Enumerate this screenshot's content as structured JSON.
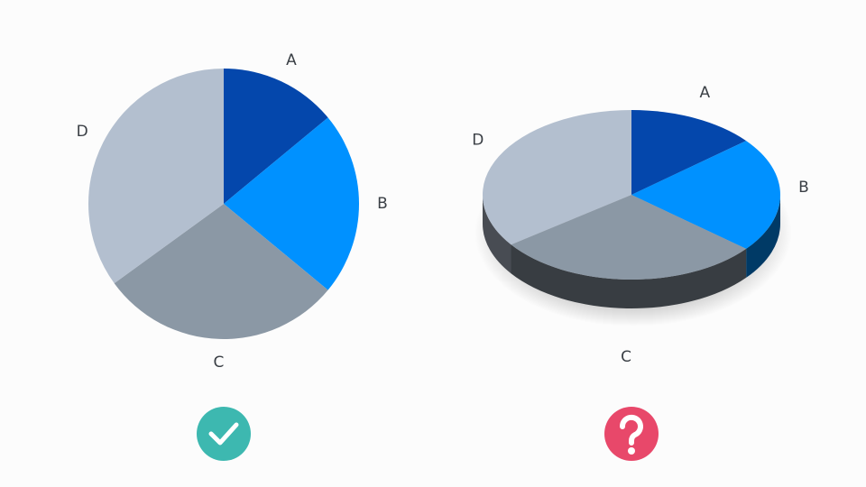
{
  "chart_data": [
    {
      "type": "pie",
      "categories": [
        "A",
        "B",
        "C",
        "D"
      ],
      "values": [
        14,
        22,
        29,
        35
      ],
      "colors": [
        "#0447ac",
        "#0091ff",
        "#8b98a5",
        "#b3bfcf"
      ]
    },
    {
      "type": "pie3d",
      "categories": [
        "A",
        "B",
        "C",
        "D"
      ],
      "values": [
        14,
        22,
        29,
        35
      ],
      "colors": [
        "#0447ac",
        "#0091ff",
        "#8b98a5",
        "#b3bfcf"
      ]
    }
  ]
}
